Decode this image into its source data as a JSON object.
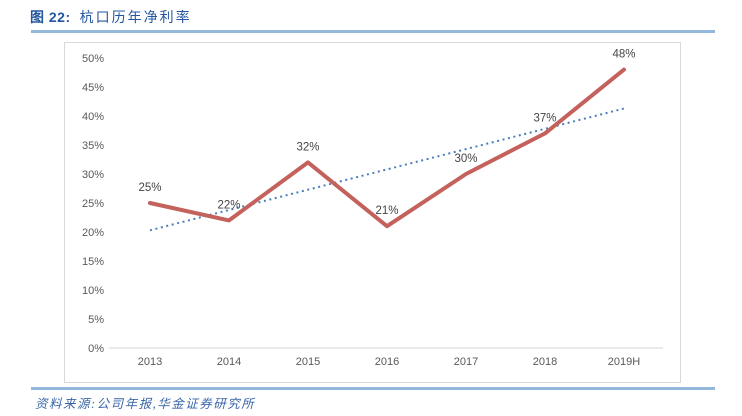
{
  "figure": {
    "label": "图 22:",
    "title": "杭口历年净利率",
    "source": "资料来源:公司年报,华金证券研究所"
  },
  "chart_data": {
    "type": "line",
    "title": "杭口历年净利率",
    "categories": [
      "2013",
      "2014",
      "2015",
      "2016",
      "2017",
      "2018",
      "2019H"
    ],
    "series": [
      {
        "name": "净利率",
        "values": [
          25,
          22,
          32,
          21,
          30,
          37,
          48
        ],
        "labels": [
          "25%",
          "22%",
          "32%",
          "21%",
          "30%",
          "37%",
          "48%"
        ],
        "color": "#C4615C",
        "style": "solid",
        "width": 4
      },
      {
        "name": "线性趋势线",
        "values": [
          20.3,
          23.8,
          27.3,
          30.8,
          34.3,
          37.8,
          41.3
        ],
        "labels": [],
        "color": "#4A7EBB",
        "style": "dotted",
        "width": 2
      }
    ],
    "y_ticks": [
      "0%",
      "5%",
      "10%",
      "15%",
      "20%",
      "25%",
      "30%",
      "35%",
      "40%",
      "45%",
      "50%"
    ],
    "xlabel": "",
    "ylabel": "",
    "ylim": [
      0,
      50
    ],
    "grid": false,
    "legend": "none",
    "axis_color": "#D6D6D6",
    "tick_color": "#595959",
    "data_label_color": "#444444"
  },
  "colors": {
    "header_text": "#2457A0",
    "rule_blue": "#93B8DB",
    "chart_border": "#D9D9D9",
    "source_text": "#3A66A8"
  }
}
